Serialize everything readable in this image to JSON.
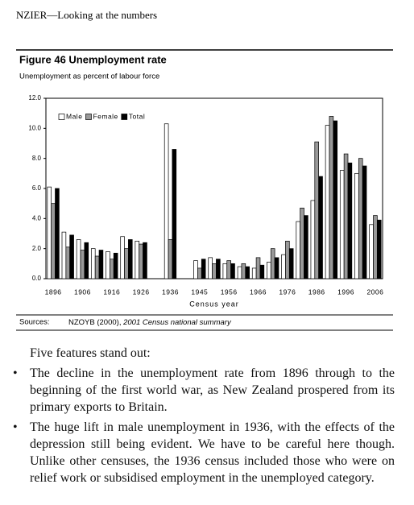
{
  "header": "NZIER—Looking at the numbers",
  "chart_data": {
    "type": "bar",
    "title": "Figure 46 Unemployment rate",
    "subtitle": "Unemployment as percent of labour force",
    "x_label": "Census year",
    "categories": [
      "1896",
      null,
      "1906",
      null,
      "1916",
      null,
      "1926",
      null,
      "1936",
      null,
      "1945",
      null,
      "1956",
      null,
      "1966",
      null,
      "1976",
      null,
      "1986",
      null,
      "1996",
      null,
      "2006"
    ],
    "series": [
      {
        "name": "Male",
        "color": "#ffffff",
        "values": [
          6.1,
          3.1,
          2.6,
          2.0,
          1.8,
          2.8,
          2.5,
          null,
          10.3,
          null,
          1.2,
          1.4,
          1.0,
          0.8,
          0.7,
          1.1,
          1.6,
          3.8,
          5.2,
          10.2,
          7.2,
          7.0,
          3.6
        ]
      },
      {
        "name": "Female",
        "color": "#999999",
        "values": [
          5.0,
          2.1,
          1.9,
          1.5,
          1.3,
          2.0,
          2.3,
          null,
          2.6,
          null,
          0.7,
          1.0,
          1.2,
          1.0,
          1.4,
          2.0,
          2.5,
          4.7,
          9.1,
          10.8,
          8.3,
          8.0,
          4.2
        ]
      },
      {
        "name": "Total",
        "color": "#000000",
        "values": [
          6.0,
          2.9,
          2.4,
          1.9,
          1.7,
          2.6,
          2.4,
          null,
          8.6,
          null,
          1.3,
          1.3,
          1.0,
          0.8,
          0.9,
          1.4,
          2.0,
          4.2,
          6.8,
          10.5,
          7.7,
          7.5,
          3.9
        ]
      }
    ],
    "ylim": [
      0,
      12
    ],
    "yticks": [
      {
        "value": 0,
        "label": "0.0"
      },
      {
        "value": 2,
        "label": "2.0"
      },
      {
        "value": 4,
        "label": "4.0"
      },
      {
        "value": 6,
        "label": "6.0"
      },
      {
        "value": 8,
        "label": "8.0"
      },
      {
        "value": 10,
        "label": "10.0"
      },
      {
        "value": 12,
        "label": "12.0"
      }
    ],
    "grid": false,
    "legend": "top-left"
  },
  "sources": {
    "label": "Sources:",
    "text": "NZOYB (2000), ",
    "italic": "2001 Census national summary"
  },
  "body": {
    "intro": "Five features stand out:",
    "bullets": [
      "The decline in the unemployment rate from 1896 through to the beginning of the first world war, as New Zealand prospered from its primary exports to Britain.",
      "The huge lift in male unemployment in 1936, with the effects of the depression still being evident. We have to be careful here though. Unlike other censuses, the 1936 census included those who were on relief work or subsidised employment in the unemployed category."
    ]
  }
}
